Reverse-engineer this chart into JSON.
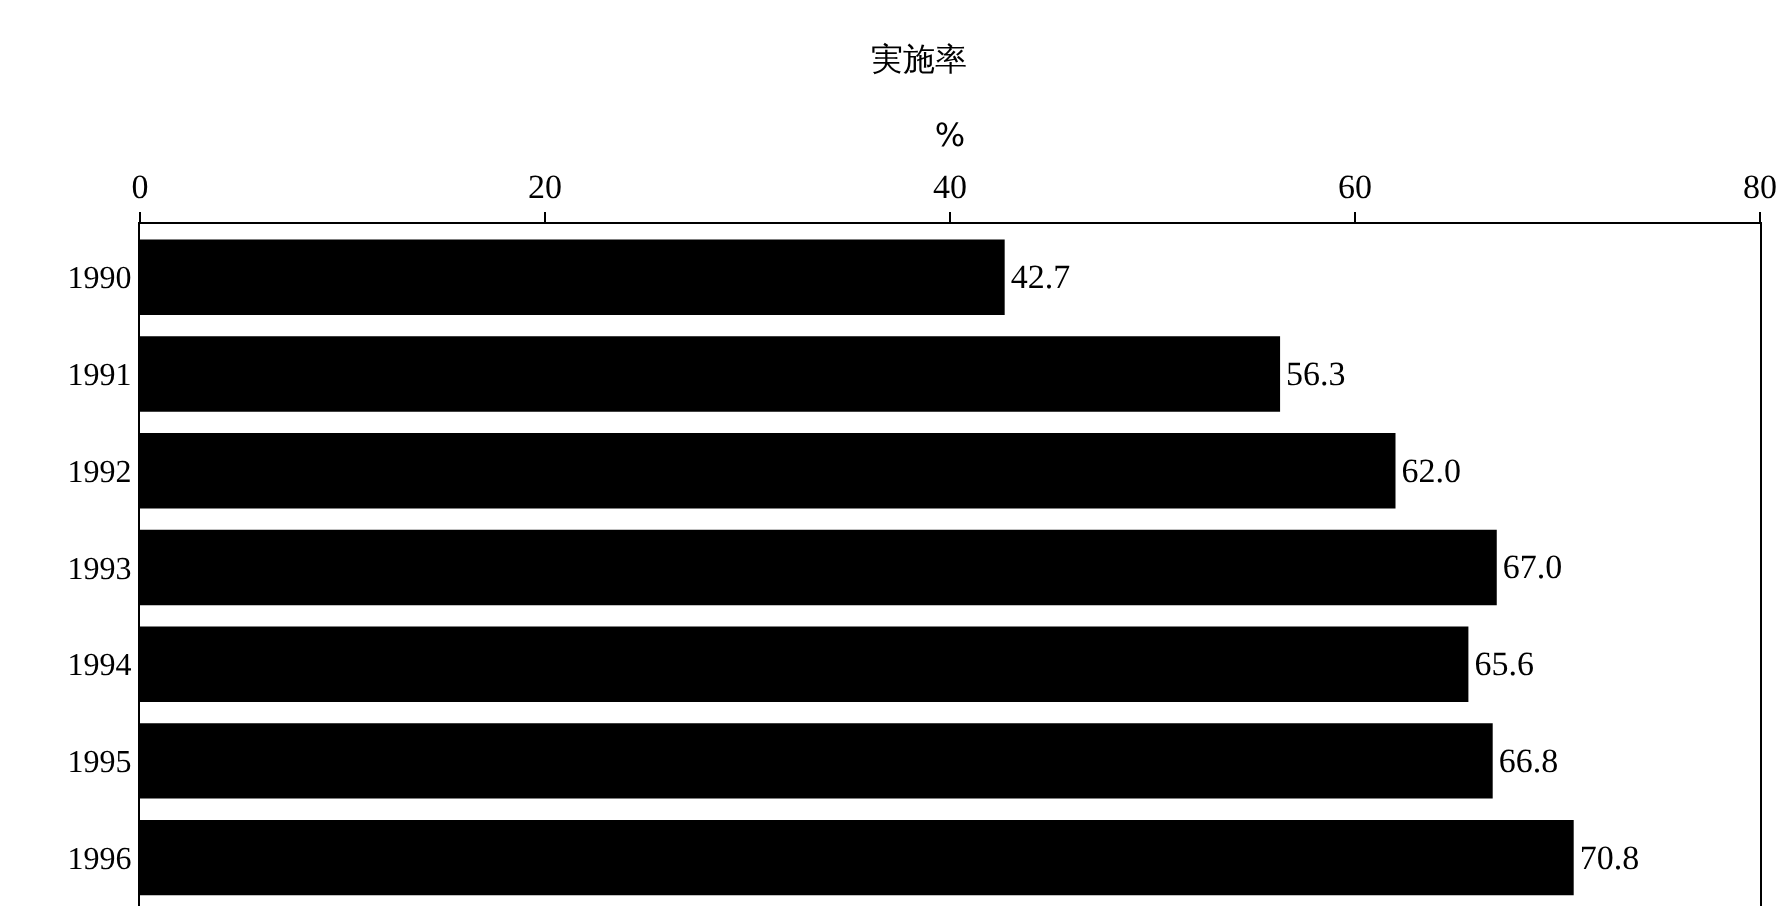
{
  "chart_data": {
    "type": "bar",
    "orientation": "horizontal",
    "title": "実施率",
    "xlabel": "%",
    "categories": [
      "1990",
      "1991",
      "1992",
      "1993",
      "1994",
      "1995",
      "1996"
    ],
    "values": [
      42.7,
      56.3,
      62.0,
      67.0,
      65.6,
      66.8,
      70.8
    ],
    "value_labels": [
      "42.7",
      "56.3",
      "62.0",
      "67.0",
      "65.6",
      "66.8",
      "70.8"
    ],
    "color": "#000000",
    "xlim": [
      0,
      80
    ],
    "xticks": [
      0,
      20,
      40,
      60,
      80
    ]
  }
}
